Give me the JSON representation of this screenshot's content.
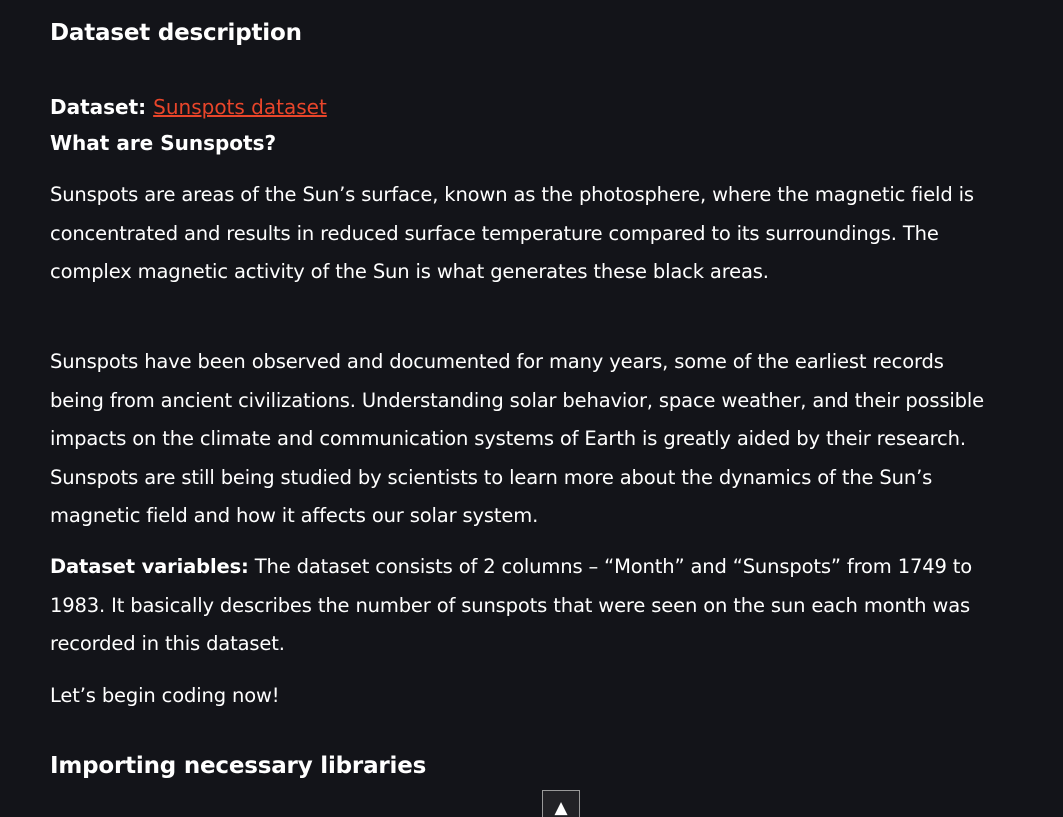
{
  "headings": {
    "dataset_description": "Dataset description",
    "importing_libraries": "Importing necessary libraries"
  },
  "dataset": {
    "label": "Dataset:",
    "link_text": "Sunspots dataset"
  },
  "question": "What are Sunspots?",
  "paragraphs": {
    "p1": "Sunspots are areas of the Sun’s surface, known as the photosphere, where the magnetic field is concentrated and results in reduced surface temperature compared to its surroundings. The complex magnetic activity of the Sun is what generates these black areas.",
    "p2": "Sunspots have been observed and documented for many years, some of the earliest records being from ancient civilizations. Understanding solar behavior, space weather, and their possible impacts on the climate and communication systems of Earth is greatly aided by their research. Sunspots are still being studied by scientists to learn more about the dynamics of the Sun’s magnetic field and how it affects our solar system.",
    "p3_label": "Dataset variables:",
    "p3_text": " The dataset consists of 2 columns – “Month” and “Sunspots” from 1749 to 1983. It basically describes the number of sunspots that were seen on the sun each month was recorded in this dataset.",
    "p4": "Let’s begin coding now!"
  },
  "scroll_top": {
    "icon": "triangle-up-icon",
    "glyph": "▲"
  },
  "colors": {
    "background": "#131419",
    "text": "#ffffff",
    "link": "#e8452a"
  }
}
